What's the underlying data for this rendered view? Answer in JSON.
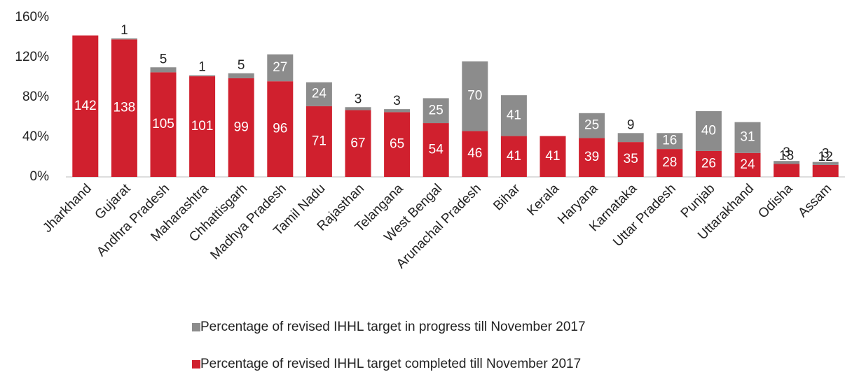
{
  "chart_data": {
    "type": "stacked_bar",
    "categories": [
      "Jharkhand",
      "Gujarat",
      "Andhra Pradesh",
      "Maharashtra",
      "Chhattisgarh",
      "Madhya Pradesh",
      "Tamil Nadu",
      "Rajasthan",
      "Telangana",
      "West Bengal",
      "Arunachal Pradesh",
      "Bihar",
      "Kerala",
      "Haryana",
      "Karnataka",
      "Uttar Pradesh",
      "Punjab",
      "Uttarakhand",
      "Odisha",
      "Assam"
    ],
    "series": [
      {
        "name": "Percentage of revised IHHL target completed till November 2017",
        "color": "#d0202e",
        "values": [
          142,
          138,
          105,
          101,
          99,
          96,
          71,
          67,
          65,
          54,
          46,
          41,
          41,
          39,
          35,
          28,
          26,
          24,
          13,
          12
        ]
      },
      {
        "name": "Percentage of revised IHHL target in progress till November 2017",
        "color": "#8c8c8c",
        "values": [
          null,
          1,
          5,
          1,
          5,
          27,
          24,
          3,
          3,
          25,
          70,
          41,
          null,
          25,
          9,
          16,
          40,
          31,
          3,
          3
        ]
      }
    ],
    "ylim": [
      0,
      160
    ],
    "yticks": [
      {
        "value": 0,
        "label": "0%"
      },
      {
        "value": 40,
        "label": "40%"
      },
      {
        "value": 80,
        "label": "80%"
      },
      {
        "value": 120,
        "label": "120%"
      },
      {
        "value": 160,
        "label": "160%"
      }
    ]
  }
}
